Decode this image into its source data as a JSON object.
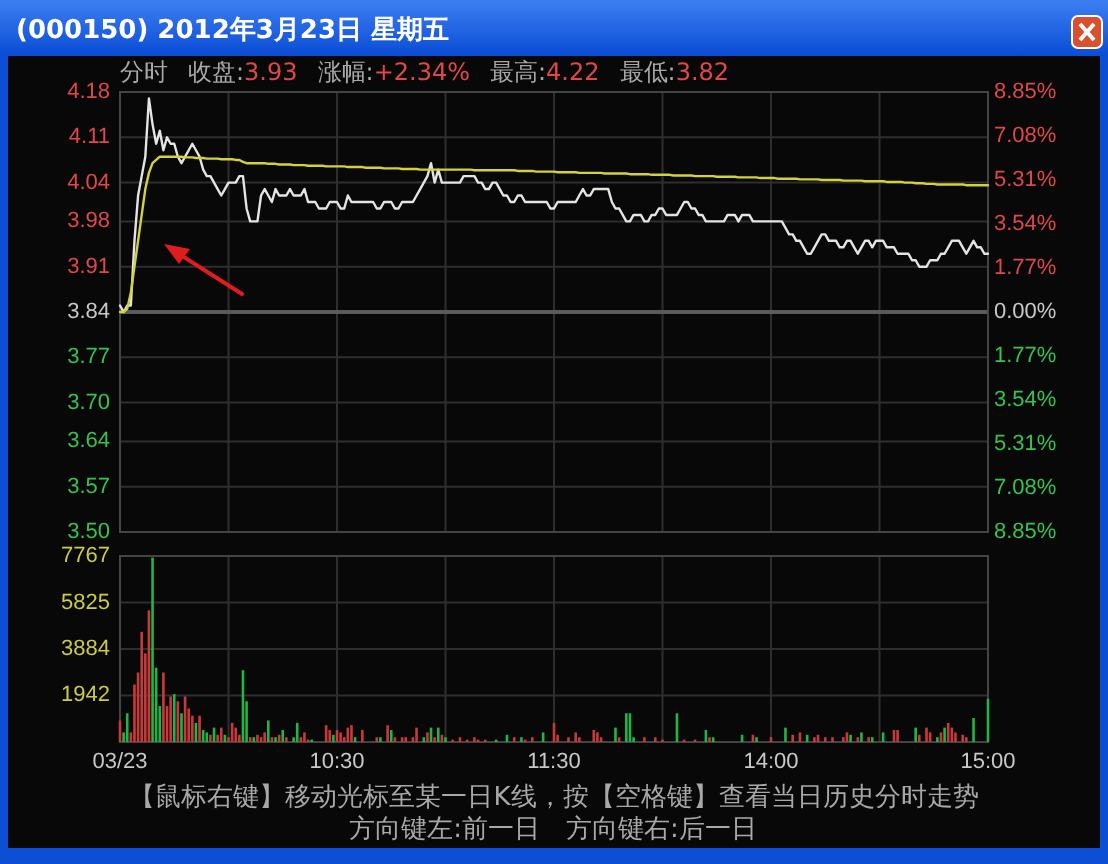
{
  "chart_data": [
    {
      "type": "line",
      "title": "(000150) 2012年3月23日 星期五",
      "annotations": [
        "分时",
        "收盘:3.93",
        "涨幅:+2.34%",
        "最高:4.22",
        "最低:3.82"
      ],
      "categories": [
        null,
        null,
        null,
        null,
        null,
        null,
        null,
        null,
        null,
        null,
        null,
        null,
        null,
        null,
        null,
        null,
        null,
        null,
        null,
        null,
        null,
        null,
        null,
        null,
        null,
        null,
        null,
        null,
        null,
        null,
        null,
        null,
        null,
        null,
        null,
        null,
        null,
        null,
        null,
        null,
        null,
        null,
        null,
        null,
        null,
        null,
        null,
        null,
        null,
        null,
        null,
        null,
        null,
        null,
        null,
        null,
        null,
        null,
        null,
        null,
        null,
        null,
        null,
        null,
        null,
        null,
        null,
        null,
        null,
        null,
        null,
        null,
        null,
        null,
        null,
        null,
        null,
        null,
        null,
        null,
        null,
        null,
        null,
        null,
        null,
        null,
        null,
        null,
        null,
        null,
        null,
        null,
        null,
        null,
        null,
        null,
        null,
        null,
        null,
        null,
        null,
        null,
        null,
        null,
        null,
        null,
        null,
        null,
        null,
        null,
        null,
        null,
        null,
        null,
        null,
        null,
        null,
        null,
        null,
        null,
        null,
        null,
        null,
        null,
        null,
        null,
        null,
        null,
        null,
        null,
        null,
        null,
        null,
        null,
        null,
        null,
        null,
        null,
        null,
        null,
        null,
        null,
        null,
        null,
        null,
        null,
        null,
        null,
        null,
        null,
        null,
        null,
        null,
        null,
        null,
        null,
        null,
        null,
        null,
        null,
        null,
        null,
        null,
        null,
        null,
        null,
        null,
        null,
        null,
        null,
        null,
        null,
        null,
        null,
        null,
        null,
        null,
        null,
        null,
        null,
        null,
        null,
        null,
        null,
        null,
        null,
        null,
        null,
        null,
        null,
        null,
        null,
        null,
        null,
        null,
        null,
        null,
        null,
        null,
        null,
        null,
        null,
        null,
        null,
        null,
        null,
        null,
        null,
        null,
        null,
        null,
        null,
        null,
        null,
        null,
        null,
        null,
        null,
        null,
        null,
        null,
        null,
        null,
        null,
        null,
        null,
        null,
        null,
        null,
        null,
        null,
        null,
        null,
        null,
        null,
        null,
        null,
        null,
        null,
        null,
        null
      ],
      "ylim": [
        3.5,
        4.18
      ],
      "yticks": [
        {
          "value": 3.5,
          "label": "3.50"
        },
        3.57,
        3.64,
        {
          "value": 3.7,
          "label": "3.70"
        },
        3.77,
        3.84,
        3.91,
        3.98,
        4.04,
        4.11,
        4.18
      ],
      "y2lim": [
        -8.85,
        8.85
      ],
      "y2ticks": [
        {
          "value": -8.85,
          "label": "8.85%"
        },
        {
          "value": -7.08,
          "label": "7.08%"
        },
        {
          "value": -5.31,
          "label": "5.31%"
        },
        {
          "value": -3.54,
          "label": "3.54%"
        },
        {
          "value": -1.77,
          "label": "1.77%"
        },
        {
          "value": 0,
          "label": "0.00%"
        },
        {
          "value": 1.77,
          "label": "1.77%"
        },
        {
          "value": 3.54,
          "label": "3.54%"
        },
        {
          "value": 5.31,
          "label": "5.31%"
        },
        {
          "value": 7.08,
          "label": "7.08%"
        },
        {
          "value": 8.85,
          "label": "8.85%"
        }
      ],
      "grid": true,
      "tick_labels": "y",
      "ref_lines": [
        {
          "axis": "y",
          "value": 3.84,
          "color": "#5a5a5a"
        }
      ],
      "series": [
        {
          "color": "#e4e4e4",
          "values": [
            3.85,
            3.84,
            3.85,
            3.85,
            3.95,
            4.02,
            4.05,
            4.08,
            4.17,
            4.13,
            4.1,
            4.12,
            4.09,
            4.11,
            4.1,
            4.1,
            4.08,
            4.07,
            4.08,
            4.09,
            4.1,
            4.09,
            4.08,
            4.06,
            4.05,
            4.05,
            4.04,
            4.03,
            4.02,
            4.03,
            4.04,
            4.04,
            4.04,
            4.05,
            4.05,
            4.0,
            3.98,
            3.98,
            3.98,
            4.02,
            4.03,
            4.02,
            4.01,
            4.03,
            4.02,
            4.02,
            4.02,
            4.03,
            4.02,
            4.02,
            4.02,
            4.03,
            4.01,
            4.01,
            4.01,
            4.0,
            4.0,
            4.0,
            4.01,
            4.01,
            4.01,
            4.0,
            4.0,
            4.02,
            4.01,
            4.01,
            4.01,
            4.01,
            4.01,
            4.01,
            4.01,
            4.0,
            4.0,
            4.01,
            4.01,
            4.01,
            4.0,
            4.0,
            4.01,
            4.01,
            4.01,
            4.01,
            4.02,
            4.03,
            4.04,
            4.05,
            4.07,
            4.04,
            4.06,
            4.04,
            4.04,
            4.04,
            4.04,
            4.04,
            4.04,
            4.05,
            4.05,
            4.05,
            4.05,
            4.04,
            4.04,
            4.03,
            4.03,
            4.04,
            4.04,
            4.03,
            4.02,
            4.02,
            4.01,
            4.01,
            4.02,
            4.02,
            4.01,
            4.01,
            4.01,
            4.01,
            4.01,
            4.01,
            4.01,
            4.0,
            4.0,
            4.01,
            4.01,
            4.01,
            4.01,
            4.01,
            4.01,
            4.02,
            4.03,
            4.02,
            4.02,
            4.03,
            4.03,
            4.03,
            4.03,
            4.03,
            4.01,
            4.0,
            4.0,
            3.99,
            3.98,
            3.98,
            3.99,
            3.99,
            3.99,
            3.98,
            3.98,
            3.99,
            3.99,
            4.0,
            4.0,
            3.99,
            3.99,
            3.99,
            3.99,
            4.0,
            4.01,
            4.01,
            4.0,
            4.0,
            3.99,
            3.99,
            3.98,
            3.98,
            3.98,
            3.98,
            3.98,
            3.98,
            3.99,
            3.99,
            3.99,
            3.98,
            3.99,
            3.99,
            3.99,
            3.98,
            3.98,
            3.98,
            3.98,
            3.98,
            3.98,
            3.98,
            3.98,
            3.98,
            3.97,
            3.96,
            3.96,
            3.95,
            3.95,
            3.94,
            3.93,
            3.93,
            3.94,
            3.95,
            3.96,
            3.96,
            3.95,
            3.95,
            3.95,
            3.94,
            3.94,
            3.95,
            3.95,
            3.94,
            3.93,
            3.94,
            3.95,
            3.95,
            3.94,
            3.95,
            3.95,
            3.95,
            3.94,
            3.94,
            3.94,
            3.93,
            3.93,
            3.93,
            3.93,
            3.92,
            3.92,
            3.91,
            3.91,
            3.91,
            3.92,
            3.92,
            3.92,
            3.93,
            3.93,
            3.94,
            3.95,
            3.95,
            3.95,
            3.94,
            3.93,
            3.94,
            3.95,
            3.94,
            3.94,
            3.93,
            3.93
          ]
        },
        {
          "color": "#d2d23c",
          "values": [
            3.84,
            3.84,
            3.845,
            3.87,
            3.91,
            3.95,
            3.99,
            4.03,
            4.055,
            4.07,
            4.075,
            4.08,
            4.08,
            4.08,
            4.08,
            4.08,
            4.08,
            4.08,
            4.079,
            4.079,
            4.079,
            4.078,
            4.078,
            4.078,
            4.077,
            4.077,
            4.077,
            4.077,
            4.076,
            4.076,
            4.076,
            4.076,
            4.075,
            4.075,
            4.072,
            4.07,
            4.07,
            4.07,
            4.07,
            4.07,
            4.07,
            4.069,
            4.069,
            4.069,
            4.068,
            4.068,
            4.068,
            4.068,
            4.067,
            4.067,
            4.067,
            4.067,
            4.066,
            4.066,
            4.066,
            4.066,
            4.066,
            4.065,
            4.065,
            4.065,
            4.065,
            4.065,
            4.065,
            4.064,
            4.064,
            4.064,
            4.064,
            4.064,
            4.063,
            4.063,
            4.063,
            4.063,
            4.063,
            4.062,
            4.062,
            4.062,
            4.062,
            4.062,
            4.061,
            4.061,
            4.061,
            4.061,
            4.061,
            4.06,
            4.06,
            4.06,
            4.06,
            4.06,
            4.06,
            4.06,
            4.06,
            4.06,
            4.06,
            4.06,
            4.06,
            4.06,
            4.06,
            4.06,
            4.059,
            4.059,
            4.059,
            4.059,
            4.059,
            4.059,
            4.059,
            4.059,
            4.059,
            4.059,
            4.059,
            4.059,
            4.058,
            4.058,
            4.058,
            4.058,
            4.058,
            4.057,
            4.057,
            4.057,
            4.057,
            4.057,
            4.057,
            4.056,
            4.056,
            4.056,
            4.056,
            4.056,
            4.056,
            4.055,
            4.055,
            4.055,
            4.055,
            4.055,
            4.055,
            4.055,
            4.054,
            4.054,
            4.054,
            4.054,
            4.054,
            4.054,
            4.054,
            4.053,
            4.053,
            4.053,
            4.053,
            4.053,
            4.053,
            4.052,
            4.052,
            4.052,
            4.052,
            4.052,
            4.052,
            4.051,
            4.051,
            4.051,
            4.051,
            4.051,
            4.051,
            4.05,
            4.05,
            4.05,
            4.05,
            4.05,
            4.05,
            4.049,
            4.049,
            4.049,
            4.049,
            4.049,
            4.049,
            4.048,
            4.048,
            4.048,
            4.048,
            4.048,
            4.048,
            4.047,
            4.047,
            4.047,
            4.047,
            4.047,
            4.046,
            4.046,
            4.046,
            4.046,
            4.046,
            4.046,
            4.045,
            4.045,
            4.045,
            4.045,
            4.045,
            4.045,
            4.044,
            4.044,
            4.044,
            4.044,
            4.044,
            4.044,
            4.043,
            4.043,
            4.043,
            4.043,
            4.043,
            4.043,
            4.042,
            4.042,
            4.042,
            4.042,
            4.042,
            4.042,
            4.041,
            4.041,
            4.041,
            4.041,
            4.041,
            4.04,
            4.04,
            4.04,
            4.039,
            4.039,
            4.039,
            4.038,
            4.038,
            4.038,
            4.037,
            4.037,
            4.037,
            4.037,
            4.037,
            4.037,
            4.037,
            4.037,
            4.036,
            4.036,
            4.036,
            4.036,
            4.036,
            4.036,
            4.036
          ]
        }
      ]
    },
    {
      "type": "bar",
      "annotations": [
        "【鼠标右键】移动光标至某一日K线，按【空格键】查看当日历史分时走势",
        "方向键左:前一日",
        "方向键右:后一日"
      ],
      "categories": [
        "03/23",
        null,
        null,
        null,
        null,
        null,
        null,
        null,
        null,
        null,
        null,
        null,
        null,
        null,
        null,
        null,
        null,
        null,
        null,
        null,
        null,
        null,
        null,
        null,
        null,
        null,
        null,
        null,
        null,
        null,
        null,
        null,
        null,
        null,
        null,
        null,
        null,
        null,
        null,
        null,
        null,
        null,
        null,
        null,
        null,
        null,
        null,
        null,
        null,
        null,
        null,
        null,
        null,
        null,
        null,
        null,
        null,
        null,
        null,
        null,
        "10:30",
        null,
        null,
        null,
        null,
        null,
        null,
        null,
        null,
        null,
        null,
        null,
        null,
        null,
        null,
        null,
        null,
        null,
        null,
        null,
        null,
        null,
        null,
        null,
        null,
        null,
        null,
        null,
        null,
        null,
        null,
        null,
        null,
        null,
        null,
        null,
        null,
        null,
        null,
        null,
        null,
        null,
        null,
        null,
        null,
        null,
        null,
        null,
        null,
        null,
        null,
        null,
        null,
        null,
        null,
        null,
        null,
        null,
        null,
        null,
        "11:30",
        null,
        null,
        null,
        null,
        null,
        null,
        null,
        null,
        null,
        null,
        null,
        null,
        null,
        null,
        null,
        null,
        null,
        null,
        null,
        null,
        null,
        null,
        null,
        null,
        null,
        null,
        null,
        null,
        null,
        null,
        null,
        null,
        null,
        null,
        null,
        null,
        null,
        null,
        null,
        null,
        null,
        null,
        null,
        null,
        null,
        null,
        null,
        null,
        null,
        null,
        null,
        null,
        null,
        null,
        null,
        null,
        null,
        null,
        null,
        "14:00",
        null,
        null,
        null,
        null,
        null,
        null,
        null,
        null,
        null,
        null,
        null,
        null,
        null,
        null,
        null,
        null,
        null,
        null,
        null,
        null,
        null,
        null,
        null,
        null,
        null,
        null,
        null,
        null,
        null,
        null,
        null,
        null,
        null,
        null,
        null,
        null,
        null,
        null,
        null,
        null,
        null,
        null,
        null,
        null,
        null,
        null,
        null,
        null,
        null,
        null,
        null,
        null,
        null,
        null,
        null,
        null,
        null,
        null,
        null,
        "15:00"
      ],
      "ylim": [
        0,
        7767
      ],
      "yticks": [
        1942,
        3884,
        5825,
        7767
      ],
      "grid": true,
      "series": [
        {
          "values": [
            900,
            400,
            1200,
            400,
            2400,
            2900,
            4600,
            3700,
            5500,
            7700,
            3100,
            1500,
            2900,
            1500,
            1900,
            2000,
            1700,
            1200,
            1900,
            1400,
            1100,
            800,
            1100,
            500,
            400,
            300,
            600,
            300,
            600,
            300,
            200,
            800,
            600,
            300,
            3000,
            1700,
            200,
            200,
            300,
            200,
            400,
            900,
            200,
            200,
            300,
            500,
            200,
            null,
            200,
            800,
            200,
            400,
            100,
            100,
            null,
            null,
            null,
            700,
            500,
            300,
            500,
            400,
            200,
            600,
            700,
            200,
            null,
            500,
            null,
            null,
            null,
            200,
            200,
            null,
            700,
            500,
            200,
            null,
            200,
            200,
            null,
            200,
            600,
            null,
            200,
            400,
            600,
            200,
            600,
            300,
            200,
            null,
            100,
            null,
            200,
            null,
            100,
            null,
            200,
            100,
            null,
            100,
            null,
            null,
            100,
            null,
            null,
            300,
            null,
            200,
            null,
            200,
            100,
            null,
            200,
            null,
            null,
            400,
            null,
            null,
            800,
            300,
            null,
            null,
            200,
            null,
            400,
            200,
            null,
            null,
            null,
            500,
            400,
            200,
            null,
            null,
            null,
            600,
            200,
            null,
            1200,
            1200,
            200,
            null,
            null,
            200,
            null,
            null,
            200,
            null,
            100,
            null,
            null,
            null,
            1200,
            null,
            100,
            null,
            null,
            100,
            null,
            null,
            500,
            200,
            200,
            null,
            null,
            null,
            null,
            null,
            null,
            null,
            300,
            null,
            null,
            300,
            200,
            null,
            null,
            null,
            200,
            null,
            null,
            null,
            600,
            null,
            300,
            null,
            400,
            null,
            300,
            null,
            200,
            300,
            null,
            200,
            null,
            200,
            null,
            null,
            200,
            400,
            300,
            null,
            200,
            400,
            null,
            200,
            200,
            null,
            null,
            400,
            null,
            null,
            500,
            500,
            null,
            null,
            null,
            null,
            600,
            300,
            null,
            600,
            400,
            null,
            200,
            400,
            600,
            800,
            600,
            400,
            null,
            300,
            200,
            null,
            1000,
            null,
            null,
            null,
            1800
          ],
          "colors": [
            "#c83a3a",
            "#22b444",
            "#22b444",
            "#c83a3a",
            "#c83a3a",
            "#c83a3a",
            "#c83a3a",
            "#c83a3a",
            "#c83a3a",
            "#22b444",
            "#22b444",
            "#22b444",
            "#c83a3a",
            "#c83a3a",
            "#c83a3a",
            "#22b444",
            "#c83a3a",
            "#22b444",
            "#c83a3a",
            "#c83a3a",
            "#c83a3a",
            "#22b444",
            "#c83a3a",
            "#22b444",
            "#22b444",
            "#c83a3a",
            "#22b444",
            "#c83a3a",
            "#c83a3a",
            "#22b444",
            "#c83a3a",
            "#c83a3a",
            "#c83a3a",
            "#c83a3a",
            "#22b444",
            "#22b444",
            "#c83a3a",
            "#22b444",
            "#c83a3a",
            "#c83a3a",
            "#c83a3a",
            "#22b444",
            "#c83a3a",
            "#22b444",
            "#c83a3a",
            "#22b444",
            "#c83a3a",
            null,
            "#22b444",
            "#22b444",
            "#c83a3a",
            "#c83a3a",
            "#c83a3a",
            "#22b444",
            null,
            null,
            null,
            "#c83a3a",
            "#c83a3a",
            "#22b444",
            "#c83a3a",
            "#c83a3a",
            "#c83a3a",
            "#c83a3a",
            "#c83a3a",
            "#22b444",
            null,
            "#c83a3a",
            null,
            null,
            null,
            "#c83a3a",
            "#22b444",
            null,
            "#c83a3a",
            "#22b444",
            "#c83a3a",
            null,
            "#c83a3a",
            "#c83a3a",
            null,
            "#c83a3a",
            "#c83a3a",
            null,
            "#22b444",
            "#c83a3a",
            "#22b444",
            "#c83a3a",
            "#22b444",
            "#c83a3a",
            "#22b444",
            null,
            "#c83a3a",
            null,
            "#c83a3a",
            null,
            "#c83a3a",
            null,
            "#c83a3a",
            "#c83a3a",
            null,
            "#c83a3a",
            null,
            null,
            "#22b444",
            null,
            null,
            "#22b444",
            null,
            "#c83a3a",
            null,
            "#22b444",
            "#c83a3a",
            null,
            "#c83a3a",
            null,
            null,
            "#22b444",
            null,
            null,
            "#c83a3a",
            "#c83a3a",
            null,
            null,
            "#c83a3a",
            null,
            "#c83a3a",
            "#c83a3a",
            null,
            null,
            null,
            "#c83a3a",
            "#c83a3a",
            "#c83a3a",
            null,
            null,
            null,
            "#22b444",
            "#c83a3a",
            null,
            "#22b444",
            "#22b444",
            "#22b444",
            null,
            null,
            "#c83a3a",
            null,
            null,
            "#c83a3a",
            null,
            "#c83a3a",
            null,
            null,
            null,
            "#22b444",
            null,
            "#c83a3a",
            null,
            null,
            "#c83a3a",
            null,
            null,
            "#22b444",
            "#c83a3a",
            "#22b444",
            null,
            null,
            null,
            null,
            null,
            null,
            null,
            "#22b444",
            null,
            null,
            "#c83a3a",
            "#22b444",
            null,
            null,
            null,
            "#c83a3a",
            null,
            null,
            null,
            "#22b444",
            null,
            "#c83a3a",
            null,
            "#c83a3a",
            null,
            "#22b444",
            null,
            "#c83a3a",
            "#c83a3a",
            null,
            "#c83a3a",
            null,
            "#c83a3a",
            null,
            null,
            "#c83a3a",
            "#c83a3a",
            "#22b444",
            null,
            "#c83a3a",
            "#22b444",
            null,
            "#c83a3a",
            "#22b444",
            null,
            null,
            "#22b444",
            null,
            null,
            "#c83a3a",
            "#c83a3a",
            null,
            null,
            null,
            null,
            "#22b444",
            "#c83a3a",
            null,
            "#c83a3a",
            "#c83a3a",
            null,
            "#22b444",
            "#c83a3a",
            "#22b444",
            "#c83a3a",
            "#c83a3a",
            "#c83a3a",
            null,
            "#c83a3a",
            "#c83a3a",
            null,
            "#22b444",
            null,
            null,
            null,
            "#22b444"
          ]
        }
      ]
    }
  ]
}
